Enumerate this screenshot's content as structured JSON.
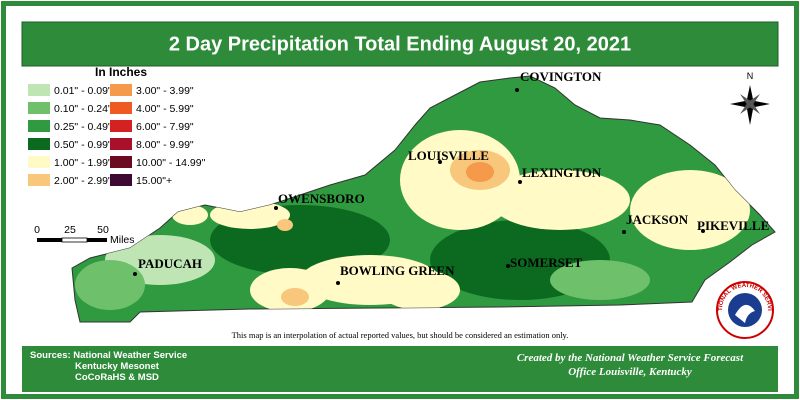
{
  "title": "2 Day Precipitation Total Ending August 20, 2021",
  "legend": {
    "title": "In Inches",
    "items": [
      {
        "label": "0.01\" - 0.09\"",
        "color": "#bfe5b5"
      },
      {
        "label": "0.10\" - 0.24\"",
        "color": "#6fc06b"
      },
      {
        "label": "0.25\" - 0.49\"",
        "color": "#2f9a40"
      },
      {
        "label": "0.50\" - 0.99\"",
        "color": "#0c6a20"
      },
      {
        "label": "1.00\" - 1.99\"",
        "color": "#fffac6"
      },
      {
        "label": "2.00\" - 2.99\"",
        "color": "#f8c77b"
      },
      {
        "label": "3.00\" - 3.99\"",
        "color": "#f59a4b"
      },
      {
        "label": "4.00\" - 5.99\"",
        "color": "#ee5a20"
      },
      {
        "label": "6.00\" - 7.99\"",
        "color": "#d42222"
      },
      {
        "label": "8.00\" - 9.99\"",
        "color": "#a8102c"
      },
      {
        "label": "10.00\" - 14.99\"",
        "color": "#6b0a20"
      },
      {
        "label": "15.00\"+",
        "color": "#3d0a34"
      }
    ]
  },
  "scale": {
    "ticks": [
      0,
      25,
      50
    ],
    "unit": "Miles"
  },
  "compass": "N",
  "cities": [
    "COVINGTON",
    "LOUISVILLE",
    "LEXINGTON",
    "OWENSBORO",
    "JACKSON",
    "PIKEVILLE",
    "PADUCAH",
    "BOWLING GREEN",
    "SOMERSET"
  ],
  "disclaimer": "This map is an interpolation of actual reported values, but should be considered an estimation only.",
  "sources": [
    "Sources:  National Weather Service",
    "Kentucky Mesonet",
    "CoCoRaHS & MSD"
  ],
  "credit": [
    "Created by the National Weather Service Forecast",
    "Office Louisville, Kentucky"
  ],
  "logo": "NATIONAL WEATHER SERVICE"
}
